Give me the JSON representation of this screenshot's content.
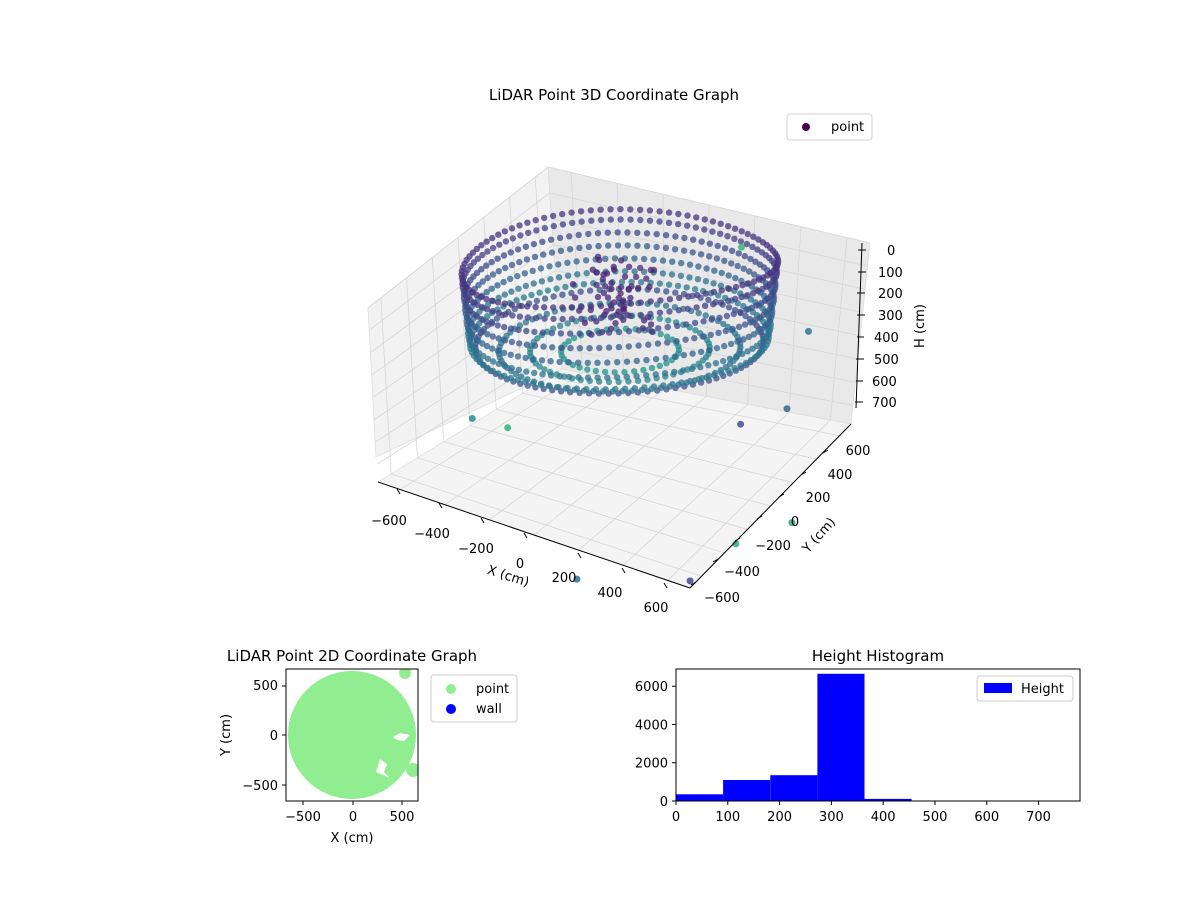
{
  "chart_data": [
    {
      "type": "scatter",
      "projection": "3d",
      "title": "LiDAR Point 3D Coordinate Graph",
      "xlabel": "X (cm)",
      "ylabel": "Y (cm)",
      "zlabel": "H (cm)",
      "xlim": [
        -700,
        700
      ],
      "ylim": [
        -700,
        700
      ],
      "zlim": [
        780,
        0
      ],
      "x_ticks": [
        "−600",
        "−400",
        "−200",
        "0",
        "200",
        "400",
        "600"
      ],
      "y_ticks": [
        "−600",
        "−400",
        "−200",
        "0",
        "200",
        "400",
        "600"
      ],
      "z_ticks": [
        "0",
        "100",
        "200",
        "300",
        "400",
        "500",
        "600",
        "700"
      ],
      "z_inverted": true,
      "grid": true,
      "legend": {
        "placement": "upper-right",
        "entries": [
          {
            "label": "point",
            "color": "#440154"
          }
        ]
      },
      "colormap": "viridis",
      "description_shape": "ring of points: cylindrical wall of radius ~600 cm at height 0–300 cm, inner structure near center, sparse outliers",
      "series": [
        {
          "name": "point",
          "layers": [
            {
              "h": 20,
              "radius": 600,
              "color": "#46337e"
            },
            {
              "h": 60,
              "radius": 598,
              "color": "#433e85"
            },
            {
              "h": 110,
              "radius": 595,
              "color": "#3e4a89"
            },
            {
              "h": 160,
              "radius": 592,
              "color": "#38588c"
            },
            {
              "h": 210,
              "radius": 588,
              "color": "#33638d"
            },
            {
              "h": 260,
              "radius": 585,
              "color": "#2d708e"
            },
            {
              "h": 300,
              "radius": 580,
              "color": "#2a788e"
            },
            {
              "h": 320,
              "radius": 560,
              "color": "#3b528b"
            },
            {
              "h": 340,
              "radius": 470,
              "color": "#2c728e"
            },
            {
              "h": 345,
              "radius": 350,
              "color": "#25848e"
            },
            {
              "h": 350,
              "radius": 230,
              "color": "#21918c"
            }
          ],
          "outliers": [
            {
              "x": 650,
              "y": -200,
              "h": 450
            },
            {
              "x": 700,
              "y": 100,
              "h": 480
            },
            {
              "x": 620,
              "y": 400,
              "h": 300
            },
            {
              "x": -500,
              "y": -300,
              "h": 600
            },
            {
              "x": -400,
              "y": -200,
              "h": 650
            },
            {
              "x": 800,
              "y": -500,
              "h": 700
            },
            {
              "x": 900,
              "y": -200,
              "h": 720
            },
            {
              "x": 700,
              "y": -700,
              "h": 760
            },
            {
              "x": 300,
              "y": -900,
              "h": 780
            },
            {
              "x": 200,
              "y": 600,
              "h": 100
            }
          ]
        }
      ]
    },
    {
      "type": "scatter",
      "title": "LiDAR Point 2D Coordinate Graph",
      "xlabel": "X (cm)",
      "ylabel": "Y (cm)",
      "xlim": [
        -670,
        670
      ],
      "ylim": [
        -670,
        670
      ],
      "x_ticks": [
        "−500",
        "0",
        "500"
      ],
      "y_ticks": [
        "−500",
        "0",
        "500"
      ],
      "legend": {
        "placement": "outside-right",
        "entries": [
          {
            "label": "point",
            "color": "#90ee90"
          },
          {
            "label": "wall",
            "color": "#0000ff"
          }
        ]
      },
      "series": [
        {
          "name": "point",
          "color": "#90ee90",
          "shape": "filled disk radius ~640 cm centered at (0,-20)"
        },
        {
          "name": "wall",
          "color": "#0000ff",
          "values": []
        }
      ]
    },
    {
      "type": "bar",
      "subtype": "histogram",
      "title": "Height Histogram",
      "xlabel": "",
      "ylabel": "",
      "xlim": [
        0,
        780
      ],
      "ylim": [
        0,
        6900
      ],
      "x_ticks": [
        "0",
        "100",
        "200",
        "300",
        "400",
        "500",
        "600",
        "700"
      ],
      "y_ticks": [
        "0",
        "2000",
        "4000",
        "6000"
      ],
      "legend": {
        "placement": "upper-right",
        "entries": [
          {
            "label": "Height",
            "color": "#0000ff"
          }
        ]
      },
      "bin_edges": [
        0,
        91,
        182,
        273,
        364,
        455,
        546,
        637,
        728
      ],
      "series": [
        {
          "name": "Height",
          "color": "#0000ff",
          "values": [
            350,
            1100,
            1350,
            6650,
            110,
            10,
            5,
            5
          ]
        }
      ]
    }
  ]
}
